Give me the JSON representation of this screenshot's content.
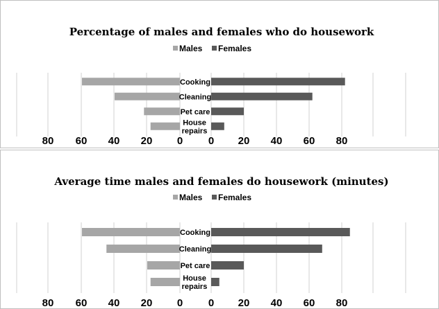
{
  "chart_data": [
    {
      "type": "bar",
      "orientation": "horizontal-butterfly",
      "title": "Percentage of males and females who do housework",
      "categories": [
        "Cooking",
        "Cleaning",
        "Pet care",
        "House repairs"
      ],
      "series": [
        {
          "name": "Males",
          "values": [
            60,
            40,
            22,
            18
          ],
          "color": "#a6a6a6"
        },
        {
          "name": "Females",
          "values": [
            82,
            62,
            20,
            8
          ],
          "color": "#595959"
        }
      ],
      "left_ticks": [
        "80",
        "60",
        "40",
        "20",
        "0"
      ],
      "right_ticks": [
        "0",
        "20",
        "40",
        "60",
        "80"
      ],
      "xlim": [
        0,
        90
      ],
      "legend_position": "top-center",
      "grid": true
    },
    {
      "type": "bar",
      "orientation": "horizontal-butterfly",
      "title": "Average time males and females do housework (minutes)",
      "categories": [
        "Cooking",
        "Cleaning",
        "Pet care",
        "House repairs"
      ],
      "series": [
        {
          "name": "Males",
          "values": [
            60,
            45,
            20,
            18
          ],
          "color": "#a6a6a6"
        },
        {
          "name": "Females",
          "values": [
            85,
            68,
            20,
            5
          ],
          "color": "#595959"
        }
      ],
      "left_ticks": [
        "80",
        "60",
        "40",
        "20",
        "0"
      ],
      "right_ticks": [
        "0",
        "20",
        "40",
        "60",
        "80"
      ],
      "xlim": [
        0,
        90
      ],
      "legend_position": "top-center",
      "grid": true
    }
  ]
}
